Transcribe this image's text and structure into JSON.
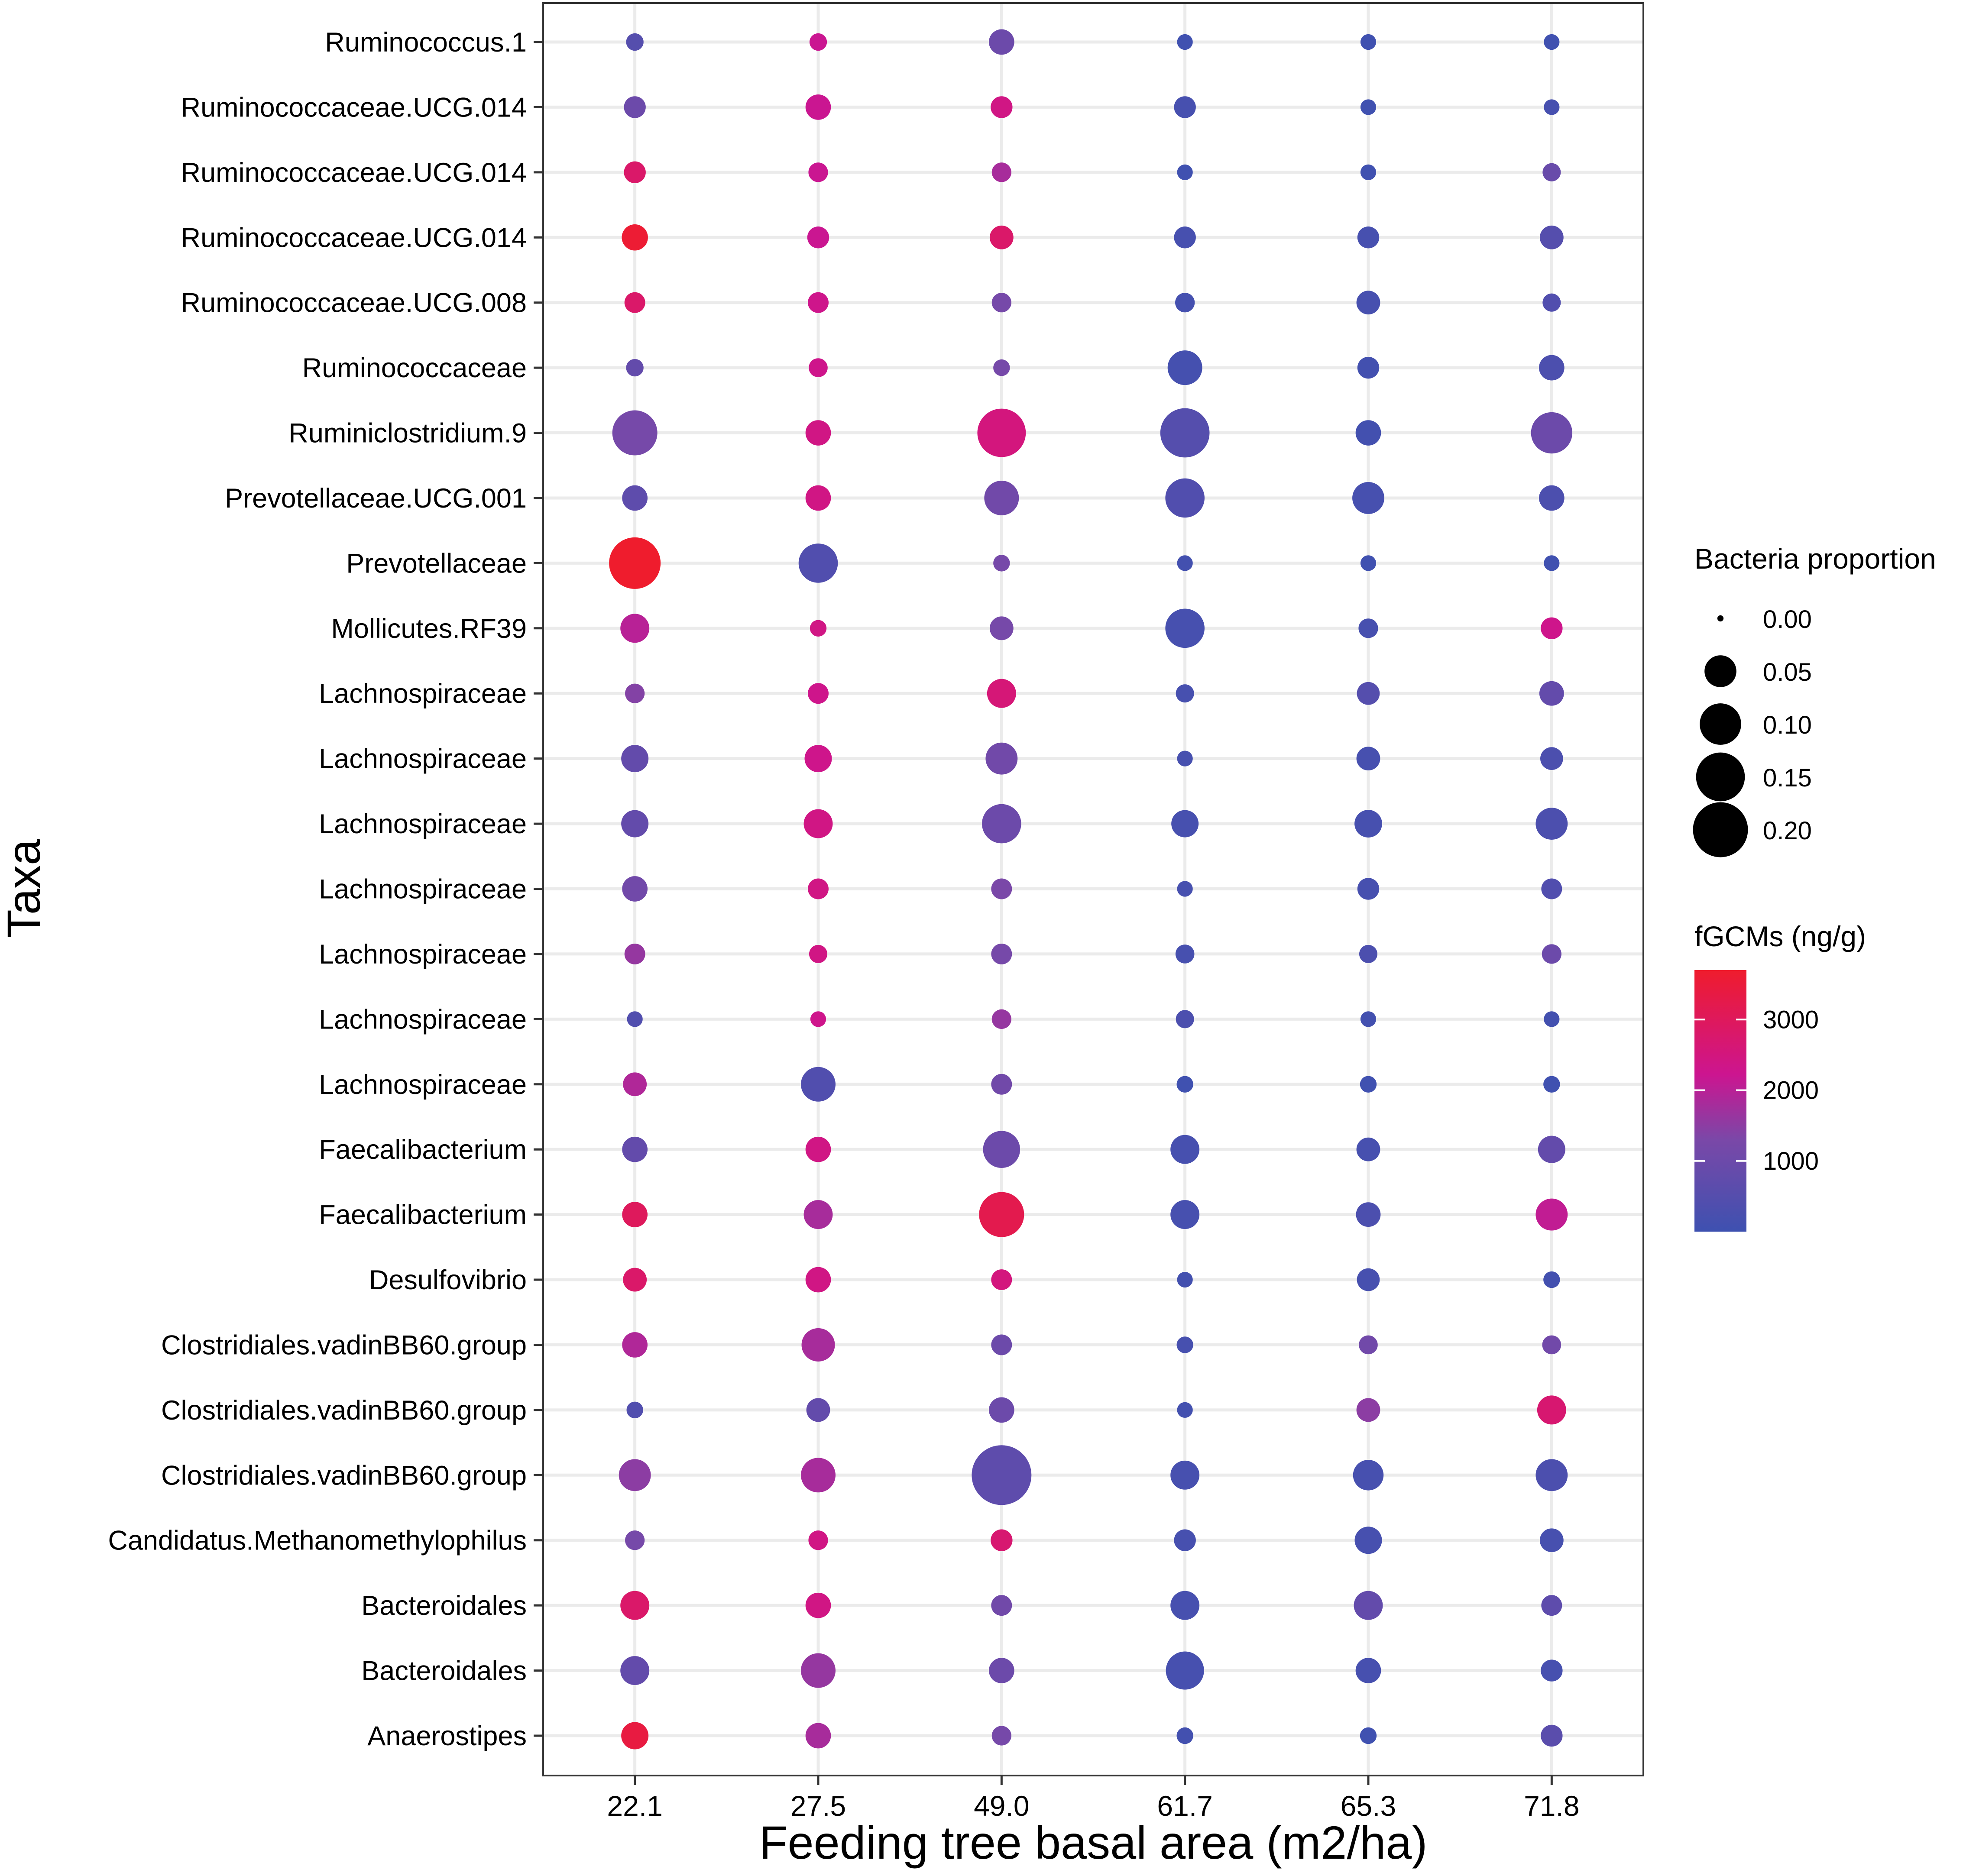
{
  "chart_data": {
    "type": "scatter",
    "xlabel": "Feeding tree basal area (m2/ha)",
    "ylabel": "Taxa",
    "x": [
      "22.1",
      "27.5",
      "49.0",
      "61.7",
      "65.3",
      "71.8"
    ],
    "taxa": [
      "Ruminococcus.1",
      "Ruminococcaceae.UCG.014",
      "Ruminococcaceae.UCG.014",
      "Ruminococcaceae.UCG.014",
      "Ruminococcaceae.UCG.008",
      "Ruminococcaceae",
      "Ruminiclostridium.9",
      "Prevotellaceae.UCG.001",
      "Prevotellaceae",
      "Mollicutes.RF39",
      "Lachnospiraceae",
      "Lachnospiraceae",
      "Lachnospiraceae",
      "Lachnospiraceae",
      "Lachnospiraceae ",
      "Lachnospiraceae",
      "Lachnospiraceae",
      "Faecalibacterium",
      "Faecalibacterium",
      "Desulfovibrio",
      "Clostridiales.vadinBB60.group",
      "Clostridiales.vadinBB60.group",
      "Clostridiales.vadinBB60.group",
      "Candidatus.Methanomethylophilus",
      "Bacteroidales",
      "Bacteroidales",
      "Anaerostipes"
    ],
    "proportion": [
      [
        0.005,
        0.005,
        0.02,
        0.003,
        0.003,
        0.003
      ],
      [
        0.012,
        0.02,
        0.012,
        0.012,
        0.003,
        0.003
      ],
      [
        0.012,
        0.008,
        0.008,
        0.003,
        0.003,
        0.006
      ],
      [
        0.022,
        0.012,
        0.016,
        0.012,
        0.012,
        0.016
      ],
      [
        0.01,
        0.01,
        0.008,
        0.008,
        0.016,
        0.006
      ],
      [
        0.005,
        0.007,
        0.004,
        0.05,
        0.012,
        0.02
      ],
      [
        0.1,
        0.02,
        0.12,
        0.125,
        0.02,
        0.08
      ],
      [
        0.02,
        0.02,
        0.05,
        0.07,
        0.04,
        0.02
      ],
      [
        0.14,
        0.07,
        0.004,
        0.003,
        0.003,
        0.003
      ],
      [
        0.03,
        0.004,
        0.016,
        0.07,
        0.008,
        0.012
      ],
      [
        0.008,
        0.01,
        0.03,
        0.006,
        0.014,
        0.018
      ],
      [
        0.025,
        0.025,
        0.04,
        0.003,
        0.016,
        0.014
      ],
      [
        0.025,
        0.03,
        0.07,
        0.025,
        0.026,
        0.04
      ],
      [
        0.02,
        0.01,
        0.01,
        0.003,
        0.012,
        0.01
      ],
      [
        0.01,
        0.006,
        0.01,
        0.007,
        0.006,
        0.008
      ],
      [
        0.003,
        0.003,
        0.008,
        0.006,
        0.003,
        0.003
      ],
      [
        0.016,
        0.05,
        0.01,
        0.004,
        0.004,
        0.004
      ],
      [
        0.02,
        0.02,
        0.06,
        0.03,
        0.016,
        0.025
      ],
      [
        0.02,
        0.03,
        0.1,
        0.03,
        0.018,
        0.04
      ],
      [
        0.016,
        0.02,
        0.01,
        0.003,
        0.014,
        0.004
      ],
      [
        0.02,
        0.045,
        0.01,
        0.004,
        0.007,
        0.007
      ],
      [
        0.004,
        0.016,
        0.02,
        0.003,
        0.016,
        0.03
      ],
      [
        0.04,
        0.05,
        0.2,
        0.03,
        0.035,
        0.04
      ],
      [
        0.008,
        0.008,
        0.012,
        0.012,
        0.025,
        0.016
      ],
      [
        0.03,
        0.02,
        0.01,
        0.03,
        0.03,
        0.01
      ],
      [
        0.03,
        0.05,
        0.02,
        0.065,
        0.02,
        0.012
      ],
      [
        0.025,
        0.02,
        0.008,
        0.004,
        0.004,
        0.012
      ]
    ],
    "fgcm": [
      [
        500,
        2200,
        1000,
        50,
        50,
        50
      ],
      [
        1000,
        2200,
        2400,
        200,
        50,
        200
      ],
      [
        2800,
        2200,
        1800,
        50,
        50,
        900
      ],
      [
        3600,
        2200,
        2800,
        200,
        200,
        500
      ],
      [
        2800,
        2300,
        1200,
        150,
        200,
        400
      ],
      [
        800,
        2300,
        1200,
        150,
        100,
        300
      ],
      [
        1200,
        2400,
        2500,
        500,
        100,
        1000
      ],
      [
        700,
        2400,
        1100,
        400,
        200,
        300
      ],
      [
        3700,
        400,
        1200,
        100,
        50,
        50
      ],
      [
        2000,
        2400,
        1200,
        200,
        200,
        2300
      ],
      [
        1400,
        2300,
        2600,
        200,
        500,
        800
      ],
      [
        800,
        2300,
        1100,
        200,
        200,
        300
      ],
      [
        800,
        2400,
        1000,
        200,
        200,
        300
      ],
      [
        1100,
        2400,
        1300,
        200,
        200,
        400
      ],
      [
        1600,
        2400,
        1200,
        200,
        300,
        1000
      ],
      [
        400,
        2300,
        1600,
        300,
        100,
        100
      ],
      [
        1900,
        400,
        1100,
        50,
        50,
        50
      ],
      [
        800,
        2400,
        1000,
        200,
        200,
        800
      ],
      [
        3000,
        1800,
        3200,
        200,
        300,
        2100
      ],
      [
        2800,
        2400,
        2500,
        100,
        200,
        100
      ],
      [
        1900,
        1800,
        1000,
        200,
        1100,
        1100
      ],
      [
        400,
        800,
        1000,
        100,
        1500,
        2700
      ],
      [
        1500,
        1800,
        700,
        200,
        200,
        300
      ],
      [
        1200,
        2400,
        2700,
        200,
        200,
        200
      ],
      [
        2800,
        2400,
        1100,
        200,
        800,
        700
      ],
      [
        800,
        1600,
        1000,
        200,
        200,
        200
      ],
      [
        3400,
        1800,
        1200,
        100,
        50,
        600
      ]
    ],
    "legend_size": {
      "title": "Bacteria proportion",
      "labels": [
        "0.00",
        "0.05",
        "0.10",
        "0.15",
        "0.20"
      ],
      "values": [
        0.0,
        0.05,
        0.1,
        0.15,
        0.2
      ]
    },
    "legend_color": {
      "title": "fGCMs (ng/g)",
      "labels": [
        "3000",
        "2000",
        "1000"
      ],
      "values": [
        3000,
        2000,
        1000
      ],
      "range": [
        0,
        3700
      ],
      "low_color": "#3e51b0",
      "mid_color": "#cc1590",
      "high_color": "#ef1c2d"
    },
    "legend_placement": "right"
  }
}
